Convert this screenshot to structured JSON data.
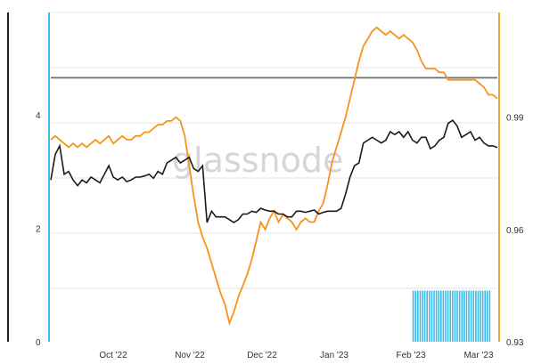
{
  "watermark": "glassnode",
  "colors": {
    "left_series": "#1a1a1a",
    "right_series": "#f7931a",
    "threshold": "#6e6e6e",
    "highlight": "#3cbcea",
    "left_axis_bar": "#222222",
    "right_axis_bar": "#f0a52a",
    "cyan_edge": "#3cbcea",
    "grid": "#e6e6e6"
  },
  "chart_data": {
    "type": "line",
    "title": "",
    "x_labels": [
      "Oct '22",
      "Nov '22",
      "Dec '22",
      "Jan '23",
      "Feb '23",
      "Mar '23"
    ],
    "x_start": 0,
    "x_end": 100,
    "left_axis": {
      "ticks": [
        0,
        2,
        4
      ],
      "ylim": [
        0,
        5.8
      ]
    },
    "right_axis": {
      "ticks": [
        0.93,
        0.96,
        0.99
      ],
      "ylim": [
        0.93,
        1.018
      ]
    },
    "threshold_line": {
      "value": 4.65,
      "axis": "left"
    },
    "highlight_region": {
      "x_from": 81,
      "x_to": 98.5,
      "top_value": 0.9,
      "axis": "left"
    },
    "series": [
      {
        "axis": "left",
        "x": [
          0,
          1,
          2,
          3,
          4,
          5,
          6,
          7,
          8,
          9,
          10,
          11,
          12,
          13,
          14,
          15,
          16,
          17,
          18,
          19,
          20,
          21,
          22,
          23,
          24,
          25,
          26,
          27,
          28,
          29,
          30,
          31,
          32,
          33,
          34,
          35,
          36,
          37,
          38,
          39,
          40,
          41,
          42,
          43,
          44,
          45,
          46,
          47,
          48,
          49,
          50,
          51,
          52,
          53,
          54,
          55,
          56,
          57,
          58,
          59,
          60,
          61,
          62,
          63,
          64,
          65,
          66,
          67,
          68,
          69,
          70,
          71,
          72,
          73,
          74,
          75,
          76,
          77,
          78,
          79,
          80,
          81,
          82,
          83,
          84,
          85,
          86,
          87,
          88,
          89,
          90,
          91,
          92,
          93,
          94,
          95,
          96,
          97,
          98,
          99,
          100
        ],
        "y": [
          2.85,
          3.3,
          3.45,
          2.95,
          3.0,
          2.85,
          2.75,
          2.85,
          2.8,
          2.9,
          2.85,
          2.8,
          2.95,
          3.1,
          2.9,
          2.85,
          2.9,
          2.82,
          2.85,
          2.9,
          2.9,
          2.92,
          2.95,
          2.88,
          3.0,
          2.95,
          3.15,
          3.2,
          3.25,
          3.15,
          3.2,
          3.25,
          3.05,
          3.0,
          3.1,
          2.1,
          2.3,
          2.2,
          2.2,
          2.2,
          2.15,
          2.1,
          2.15,
          2.25,
          2.25,
          2.3,
          2.28,
          2.35,
          2.32,
          2.3,
          2.3,
          2.25,
          2.25,
          2.2,
          2.2,
          2.3,
          2.3,
          2.28,
          2.3,
          2.32,
          2.25,
          2.28,
          2.3,
          2.3,
          2.3,
          2.35,
          2.6,
          2.9,
          3.1,
          3.15,
          3.5,
          3.55,
          3.6,
          3.55,
          3.5,
          3.55,
          3.7,
          3.65,
          3.7,
          3.6,
          3.7,
          3.55,
          3.5,
          3.6,
          3.6,
          3.4,
          3.45,
          3.55,
          3.6,
          3.85,
          3.9,
          3.8,
          3.6,
          3.65,
          3.7,
          3.55,
          3.6,
          3.5,
          3.45,
          3.45,
          3.42
        ]
      },
      {
        "axis": "right",
        "x": [
          0,
          1,
          2,
          3,
          4,
          5,
          6,
          7,
          8,
          9,
          10,
          11,
          12,
          13,
          14,
          15,
          16,
          17,
          18,
          19,
          20,
          21,
          22,
          23,
          24,
          25,
          26,
          27,
          28,
          29,
          30,
          31,
          32,
          33,
          34,
          35,
          36,
          37,
          38,
          39,
          40,
          41,
          42,
          43,
          44,
          45,
          46,
          47,
          48,
          49,
          50,
          51,
          52,
          53,
          54,
          55,
          56,
          57,
          58,
          59,
          60,
          61,
          62,
          63,
          64,
          65,
          66,
          67,
          68,
          69,
          70,
          71,
          72,
          73,
          74,
          75,
          76,
          77,
          78,
          79,
          80,
          81,
          82,
          83,
          84,
          85,
          86,
          87,
          88,
          89,
          90,
          91,
          92,
          93,
          94,
          95,
          96,
          97,
          98,
          99,
          100
        ],
        "y": [
          0.984,
          0.985,
          0.984,
          0.983,
          0.982,
          0.983,
          0.982,
          0.983,
          0.982,
          0.983,
          0.984,
          0.983,
          0.984,
          0.985,
          0.983,
          0.984,
          0.985,
          0.984,
          0.984,
          0.985,
          0.985,
          0.986,
          0.986,
          0.987,
          0.988,
          0.988,
          0.989,
          0.989,
          0.99,
          0.989,
          0.985,
          0.977,
          0.969,
          0.962,
          0.958,
          0.955,
          0.951,
          0.947,
          0.943,
          0.94,
          0.935,
          0.938,
          0.942,
          0.945,
          0.948,
          0.952,
          0.957,
          0.962,
          0.96,
          0.963,
          0.965,
          0.962,
          0.964,
          0.963,
          0.962,
          0.96,
          0.962,
          0.963,
          0.962,
          0.962,
          0.965,
          0.967,
          0.972,
          0.978,
          0.982,
          0.986,
          0.99,
          0.995,
          1.0,
          1.005,
          1.009,
          1.011,
          1.013,
          1.014,
          1.013,
          1.012,
          1.013,
          1.012,
          1.011,
          1.012,
          1.011,
          1.01,
          1.008,
          1.005,
          1.003,
          1.003,
          1.003,
          1.002,
          1.002,
          1.0,
          1.0,
          1.0,
          1.0,
          1.0,
          1.0,
          1.0,
          0.999,
          0.998,
          0.996,
          0.996,
          0.995
        ]
      }
    ]
  }
}
